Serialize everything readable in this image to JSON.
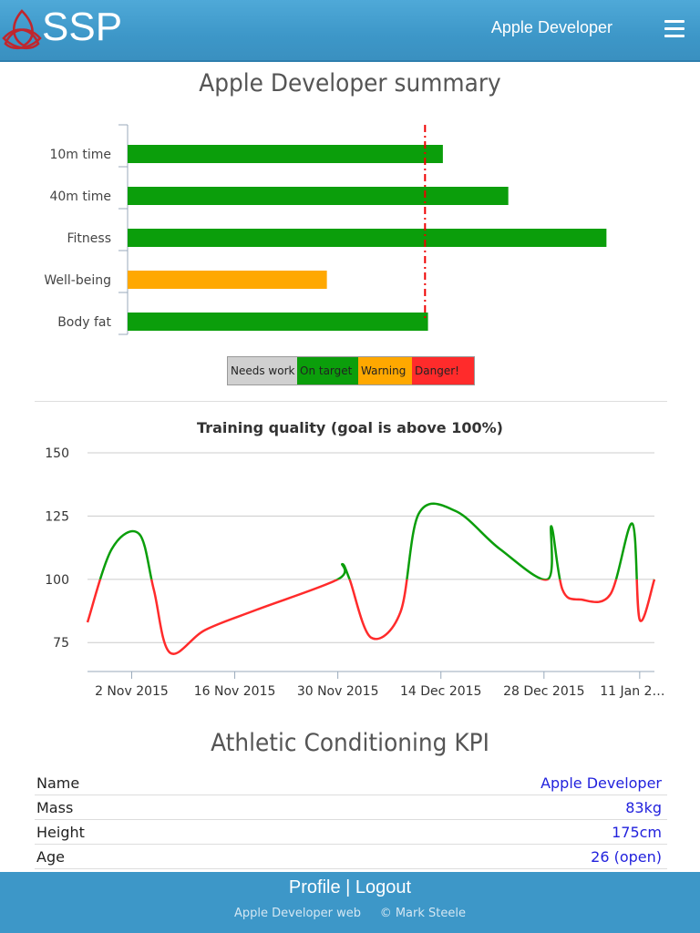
{
  "header": {
    "logo_text": "SSP",
    "user_name": "Apple Developer",
    "menu_icon": "hamburger-icon"
  },
  "summary": {
    "title": "Apple Developer summary",
    "legend": {
      "needs_work": "Needs work",
      "on_target": "On target",
      "warning": "Warning",
      "danger": "Danger!"
    }
  },
  "colors": {
    "header": "#3d97c8",
    "on_target": "#0b9e0b",
    "warning": "#ffa800",
    "danger": "#ff2b2b",
    "needs_work": "#d0d0d0",
    "link": "#2222dd"
  },
  "chart_data": [
    {
      "type": "bar",
      "orientation": "horizontal",
      "categories": [
        "10m time",
        "40m time",
        "Fitness",
        "Well-being",
        "Body fat"
      ],
      "values": [
        106,
        128,
        161,
        67,
        101
      ],
      "statuses": [
        "on_target",
        "on_target",
        "on_target",
        "warning",
        "on_target"
      ],
      "target_line": 100,
      "xlim": [
        0,
        190
      ]
    },
    {
      "type": "line",
      "title": "Training quality (goal is above 100%)",
      "threshold": 100,
      "ylim": [
        65,
        150
      ],
      "y_ticks": [
        75,
        100,
        125,
        150
      ],
      "x_ticks": [
        "2 Nov 2015",
        "16 Nov 2015",
        "30 Nov 2015",
        "14 Dec 2015",
        "28 Dec 2015",
        "11 Jan 2…"
      ],
      "x_tick_days": [
        6,
        20,
        34,
        48,
        62,
        75
      ],
      "x_range_days": [
        0,
        77
      ],
      "points_x_days": [
        0,
        3.3,
        7,
        9,
        11.2,
        16,
        23,
        34,
        34.6,
        35.6,
        38.5,
        42.5,
        45,
        50,
        56,
        62.5,
        63,
        64.5,
        67,
        71,
        74,
        75,
        77
      ],
      "points_y": [
        83,
        112,
        118,
        96,
        71,
        80,
        88,
        100,
        106,
        100,
        77,
        87,
        126,
        127,
        112,
        100,
        121,
        96,
        92,
        94,
        122,
        84,
        100
      ]
    }
  ],
  "kpi": {
    "title": "Athletic Conditioning KPI",
    "rows": [
      {
        "label": "Name",
        "value": "Apple Developer"
      },
      {
        "label": "Mass",
        "value": "83kg"
      },
      {
        "label": "Height",
        "value": "175cm"
      },
      {
        "label": "Age",
        "value": "26 (open)"
      }
    ]
  },
  "footer": {
    "profile": "Profile",
    "separator": "|",
    "logout": "Logout",
    "site": "Apple Developer web",
    "copyright": "© Mark Steele"
  }
}
